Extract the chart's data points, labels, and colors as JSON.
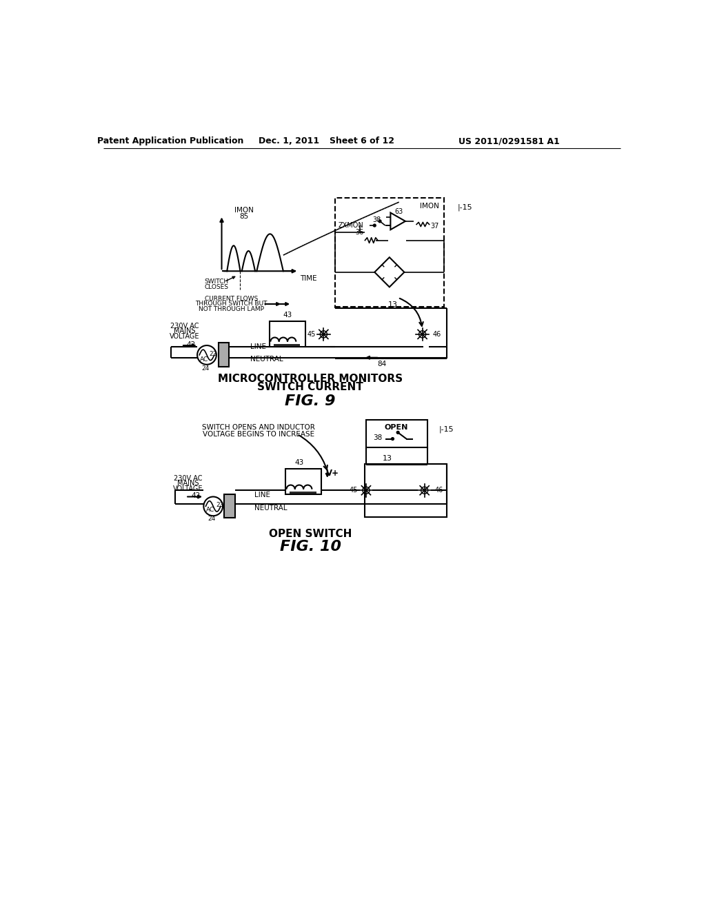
{
  "bg_color": "#ffffff",
  "line_color": "#000000",
  "header_text": "Patent Application Publication",
  "header_date": "Dec. 1, 2011",
  "header_sheet": "Sheet 6 of 12",
  "header_patent": "US 2011/0291581 A1",
  "fig9_title_line1": "MICROCONTROLLER MONITORS",
  "fig9_title_line2": "SWITCH CURRENT",
  "fig9_label": "FIG. 9",
  "fig10_title": "OPEN SWITCH",
  "fig10_label": "FIG. 10"
}
